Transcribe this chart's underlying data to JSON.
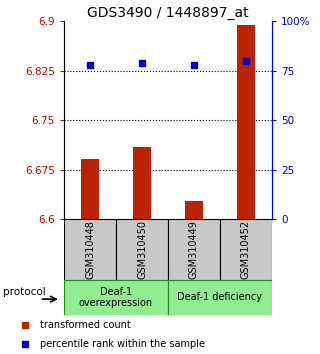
{
  "title": "GDS3490 / 1448897_at",
  "samples": [
    "GSM310448",
    "GSM310450",
    "GSM310449",
    "GSM310452"
  ],
  "red_values": [
    6.692,
    6.71,
    6.628,
    6.895
  ],
  "blue_values": [
    78,
    79,
    78,
    80
  ],
  "ylim_left": [
    6.6,
    6.9
  ],
  "ylim_right": [
    0,
    100
  ],
  "yticks_left": [
    6.6,
    6.675,
    6.75,
    6.825,
    6.9
  ],
  "ytick_labels_left": [
    "6.6",
    "6.675",
    "6.75",
    "6.825",
    "6.9"
  ],
  "yticks_right": [
    0,
    25,
    50,
    75,
    100
  ],
  "ytick_labels_right": [
    "0",
    "25",
    "50",
    "75",
    "100%"
  ],
  "hlines": [
    6.825,
    6.75,
    6.675
  ],
  "group1_label": "Deaf-1\noverexpression",
  "group2_label": "Deaf-1 deficiency",
  "group_color": "#90EE90",
  "group_border": "#228B22",
  "protocol_label": "protocol",
  "legend_red": "transformed count",
  "legend_blue": "percentile rank within the sample",
  "bar_color": "#BB2200",
  "dot_color": "#0000CC",
  "bg_color": "#C8C8C8",
  "title_fontsize": 10,
  "axis_left_color": "#CC0000",
  "axis_right_color": "#0000CC"
}
